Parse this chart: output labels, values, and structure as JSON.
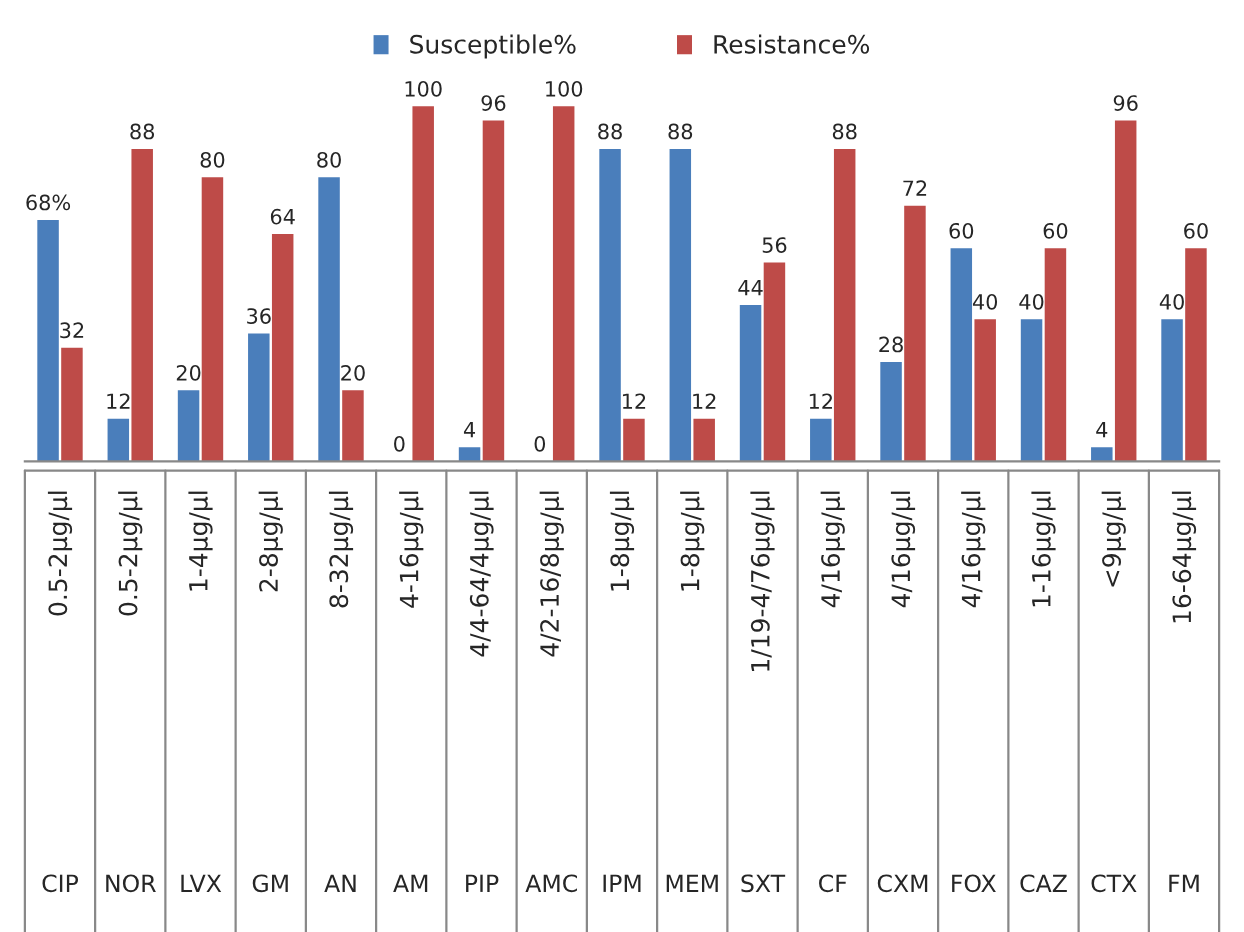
{
  "chart_data": {
    "type": "bar",
    "categories": [
      "CIP",
      "NOR",
      "LVX",
      "GM",
      "AN",
      "AM",
      "PIP",
      "AMC",
      "IPM",
      "MEM",
      "SXT",
      "CF",
      "CXM",
      "FOX",
      "CAZ",
      "CTX",
      "FM"
    ],
    "annotations": [
      "0.5-2µg/µl",
      "0.5-2µg/µl",
      "1-4µg/µl",
      "2-8µg/µl",
      "8-32µg/µl",
      "4-16µg/µl",
      "4/4-64/4µg/µl",
      "4/2-16/8µg/µl",
      "1-8µg/µl",
      "1-8µg/µl",
      "1/19-4/76µg/µl",
      "4/16µg/µl",
      "4/16µg/µl",
      "4/16µg/µl",
      "1-16µg/µl",
      "<9µg/µl",
      "16-64µg/µl"
    ],
    "series": [
      {
        "name": "Susceptible%",
        "color": "#4a7ebb",
        "values": [
          68,
          12,
          20,
          36,
          80,
          0,
          4,
          0,
          88,
          88,
          44,
          12,
          28,
          60,
          40,
          4,
          40
        ],
        "value_labels": [
          "68%",
          "12",
          "20",
          "36",
          "80",
          "0",
          "4",
          "0",
          "88",
          "88",
          "44",
          "12",
          "28",
          "60",
          "40",
          "4",
          "40"
        ]
      },
      {
        "name": "Resistance%",
        "color": "#be4b48",
        "values": [
          32,
          88,
          80,
          64,
          20,
          100,
          96,
          100,
          12,
          12,
          56,
          88,
          72,
          40,
          60,
          96,
          60
        ],
        "value_labels": [
          "32",
          "88",
          "80",
          "64",
          "20",
          "100",
          "96",
          "100",
          "12",
          "12",
          "56",
          "88",
          "72",
          "40",
          "60",
          "96",
          "60"
        ]
      }
    ],
    "legend": "top"
  }
}
